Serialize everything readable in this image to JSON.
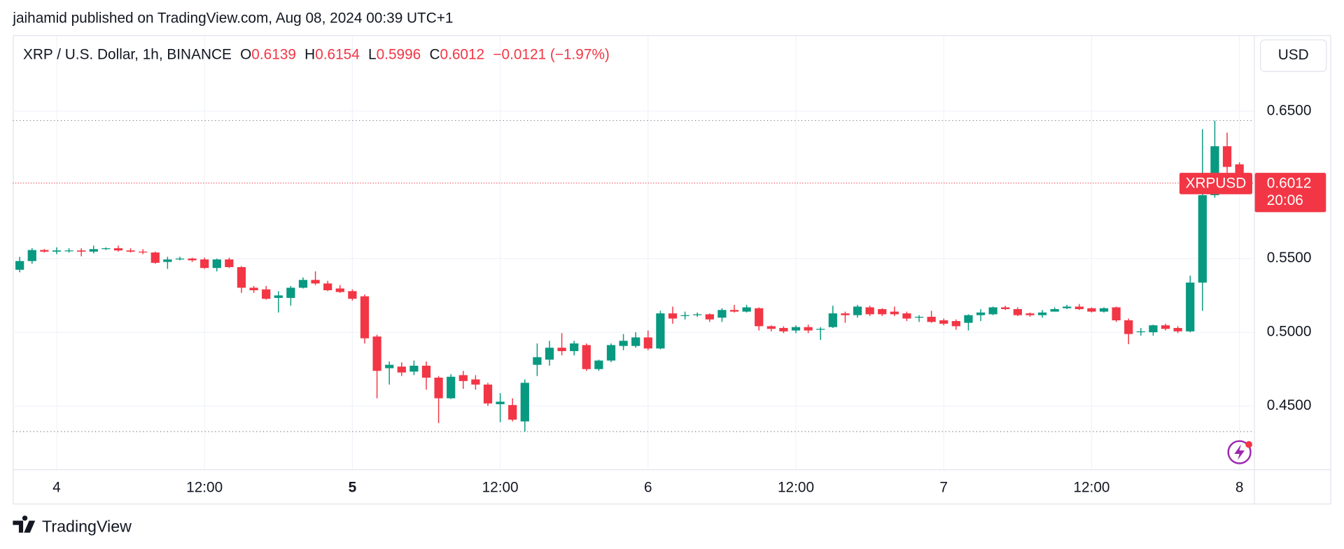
{
  "publisher": "jaihamid published on TradingView.com, Aug 08, 2024 00:39 UTC+1",
  "brand": "TradingView",
  "currency": "USD",
  "chart_data": {
    "type": "candlestick",
    "symbol": "XRP / U.S. Dollar, 1h, BINANCE",
    "open_label": "O",
    "high_label": "H",
    "low_label": "L",
    "close_label": "C",
    "change": "−0.0121 (−1.97%)",
    "price_tag": "XRPUSD",
    "countdown": "20:06",
    "up_color": "#089981",
    "down_color": "#f23645",
    "grid": true,
    "categories": [
      null,
      null,
      null,
      "4",
      null,
      null,
      null,
      null,
      null,
      null,
      null,
      null,
      null,
      null,
      null,
      "12:00",
      null,
      null,
      null,
      null,
      null,
      null,
      null,
      null,
      null,
      null,
      null,
      "5",
      null,
      null,
      null,
      null,
      null,
      null,
      null,
      null,
      null,
      null,
      null,
      "12:00",
      null,
      null,
      null,
      null,
      null,
      null,
      null,
      null,
      null,
      null,
      null,
      "6",
      null,
      null,
      null,
      null,
      null,
      null,
      null,
      null,
      null,
      null,
      null,
      "12:00",
      null,
      null,
      null,
      null,
      null,
      null,
      null,
      null,
      null,
      null,
      null,
      "7",
      null,
      null,
      null,
      null,
      null,
      null,
      null,
      null,
      null,
      null,
      null,
      "12:00",
      null,
      null,
      null,
      null,
      null,
      null,
      null,
      null,
      null,
      null,
      null,
      "8"
    ],
    "open": [
      0.5424,
      0.5483,
      0.5558,
      0.5547,
      0.5552,
      0.5555,
      0.5547,
      0.5564,
      0.557,
      0.5555,
      0.5547,
      0.5541,
      0.5477,
      0.5494,
      0.55,
      0.5494,
      0.5436,
      0.5494,
      0.5442,
      0.5302,
      0.5291,
      0.5233,
      0.5233,
      0.5302,
      0.5355,
      0.5331,
      0.5297,
      0.5279,
      0.5244,
      0.4971,
      0.4756,
      0.4767,
      0.4733,
      0.4773,
      0.4692,
      0.4552,
      0.4709,
      0.468,
      0.4645,
      0.4512,
      0.4506,
      0.4395,
      0.4779,
      0.4814,
      0.4895,
      0.4872,
      0.4913,
      0.475,
      0.4808,
      0.4907,
      0.4907,
      0.4965,
      0.489,
      0.5128,
      0.511,
      0.5116,
      0.5122,
      0.5099,
      0.5151,
      0.514,
      0.5163,
      0.5041,
      0.5029,
      0.5012,
      0.5035,
      0.5017,
      0.5035,
      0.5128,
      0.5116,
      0.5169,
      0.5157,
      0.514,
      0.5128,
      0.5099,
      0.5105,
      0.5081,
      0.5076,
      0.5064,
      0.5116,
      0.5122,
      0.5169,
      0.5157,
      0.5128,
      0.5116,
      0.514,
      0.5163,
      0.5174,
      0.5163,
      0.514,
      0.5169,
      0.5081,
      0.5,
      0.5,
      0.5047,
      0.5029,
      0.5006,
      0.5337,
      0.593,
      0.6262,
      0.6139
    ],
    "high": [
      0.5512,
      0.557,
      0.5564,
      0.5576,
      0.557,
      0.557,
      0.5588,
      0.5576,
      0.5588,
      0.557,
      0.5564,
      0.5547,
      0.5512,
      0.5512,
      0.5506,
      0.5506,
      0.55,
      0.5506,
      0.5448,
      0.5314,
      0.5314,
      0.5279,
      0.5314,
      0.5372,
      0.5413,
      0.5349,
      0.532,
      0.5291,
      0.5256,
      0.4983,
      0.4802,
      0.4796,
      0.4808,
      0.4802,
      0.4703,
      0.4715,
      0.4738,
      0.4709,
      0.4657,
      0.4587,
      0.4552,
      0.468,
      0.4924,
      0.4942,
      0.4994,
      0.4942,
      0.4924,
      0.4814,
      0.4924,
      0.4988,
      0.5,
      0.5012,
      0.5146,
      0.5174,
      0.514,
      0.5134,
      0.5128,
      0.5163,
      0.5186,
      0.5186,
      0.5169,
      0.5047,
      0.5041,
      0.5047,
      0.5052,
      0.5035,
      0.518,
      0.514,
      0.5186,
      0.518,
      0.5163,
      0.5174,
      0.514,
      0.5116,
      0.5146,
      0.5093,
      0.5087,
      0.5122,
      0.5157,
      0.5174,
      0.518,
      0.5169,
      0.5134,
      0.5151,
      0.5169,
      0.5186,
      0.5192,
      0.5169,
      0.5169,
      0.5174,
      0.5093,
      0.5029,
      0.5052,
      0.5058,
      0.5041,
      0.5384,
      0.6378,
      0.6436,
      0.6355,
      0.6154
    ],
    "low": [
      0.5407,
      0.5465,
      0.5541,
      0.553,
      0.5541,
      0.5515,
      0.5535,
      0.5558,
      0.5547,
      0.5541,
      0.553,
      0.5465,
      0.543,
      0.5488,
      0.5477,
      0.543,
      0.5413,
      0.5436,
      0.5267,
      0.5267,
      0.5221,
      0.5134,
      0.518,
      0.5297,
      0.532,
      0.5279,
      0.5267,
      0.5215,
      0.4924,
      0.4552,
      0.4645,
      0.4703,
      0.4709,
      0.461,
      0.4384,
      0.4547,
      0.4616,
      0.461,
      0.45,
      0.439,
      0.4395,
      0.4326,
      0.4703,
      0.4773,
      0.4843,
      0.4843,
      0.4738,
      0.4738,
      0.4797,
      0.4878,
      0.4895,
      0.4878,
      0.4884,
      0.5058,
      0.5087,
      0.5105,
      0.507,
      0.507,
      0.5134,
      0.5134,
      0.5012,
      0.5006,
      0.4994,
      0.4994,
      0.4994,
      0.4948,
      0.5029,
      0.5064,
      0.5099,
      0.511,
      0.511,
      0.511,
      0.5076,
      0.507,
      0.5064,
      0.5047,
      0.5017,
      0.5012,
      0.5076,
      0.5116,
      0.5151,
      0.511,
      0.5105,
      0.5099,
      0.514,
      0.5157,
      0.5151,
      0.5134,
      0.5134,
      0.507,
      0.4919,
      0.4977,
      0.4977,
      0.5012,
      0.4994,
      0.5,
      0.5145,
      0.5913,
      0.6064,
      0.5996
    ],
    "close": [
      0.5483,
      0.5558,
      0.5547,
      0.5555,
      0.5555,
      0.5547,
      0.5564,
      0.557,
      0.5555,
      0.5547,
      0.5541,
      0.5471,
      0.5494,
      0.55,
      0.5488,
      0.5436,
      0.5494,
      0.5442,
      0.5302,
      0.5285,
      0.5227,
      0.525,
      0.5302,
      0.5355,
      0.5331,
      0.5285,
      0.5273,
      0.5227,
      0.4959,
      0.4738,
      0.4779,
      0.4727,
      0.4773,
      0.4692,
      0.4552,
      0.4698,
      0.4669,
      0.4645,
      0.4517,
      0.4529,
      0.4407,
      0.4657,
      0.4831,
      0.4895,
      0.4872,
      0.4924,
      0.475,
      0.4808,
      0.4913,
      0.4942,
      0.4965,
      0.489,
      0.5128,
      0.5093,
      0.5116,
      0.5122,
      0.5087,
      0.5151,
      0.514,
      0.5169,
      0.5041,
      0.5023,
      0.5006,
      0.5035,
      0.5012,
      0.5023,
      0.5128,
      0.5116,
      0.5174,
      0.5122,
      0.5122,
      0.5122,
      0.5093,
      0.5105,
      0.507,
      0.5058,
      0.5041,
      0.5116,
      0.5134,
      0.5169,
      0.5157,
      0.5116,
      0.5116,
      0.5134,
      0.5157,
      0.5174,
      0.5157,
      0.514,
      0.5163,
      0.5081,
      0.4988,
      0.5006,
      0.5047,
      0.5023,
      0.5006,
      0.5337,
      0.593,
      0.6262,
      0.6122,
      0.6012
    ],
    "ylim": [
      0.407,
      0.701
    ],
    "yticks": [
      {
        "value": 0.45,
        "label": "0.4500"
      },
      {
        "value": 0.5,
        "label": "0.5000"
      },
      {
        "value": 0.55,
        "label": "0.5500"
      },
      {
        "value": 0.65,
        "label": "0.6500"
      }
    ]
  }
}
